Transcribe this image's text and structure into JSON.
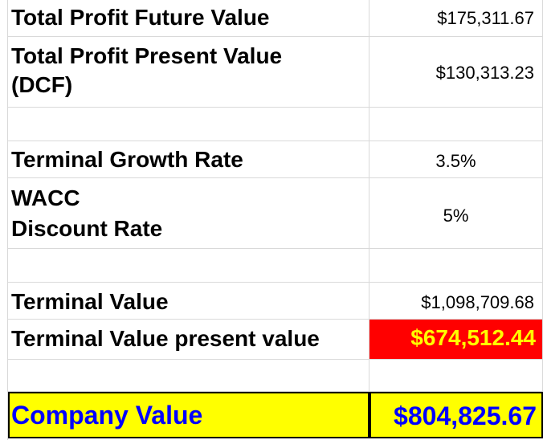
{
  "rows": {
    "future_value": {
      "label": "Total Profit Future Value",
      "value": "$175,311.67"
    },
    "present_value": {
      "label_line1": "Total Profit Present Value",
      "label_line2": "(DCF)",
      "value": "$130,313.23"
    },
    "growth_rate": {
      "label": "Terminal Growth Rate",
      "value": "3.5%"
    },
    "wacc": {
      "label_line1": "WACC",
      "label_line2": "Discount Rate",
      "value": "5%"
    },
    "terminal_value": {
      "label": "Terminal Value",
      "value": "$1,098,709.68"
    },
    "terminal_pv": {
      "label": "Terminal Value present value",
      "value": "$674,512.44"
    },
    "company_value": {
      "label": "Company Value",
      "value": "$804,825.67"
    }
  },
  "colors": {
    "highlight_red": "#ff0000",
    "highlight_yellow": "#ffff00",
    "accent_blue": "#0000ff",
    "gridline": "#d9d9d9"
  }
}
